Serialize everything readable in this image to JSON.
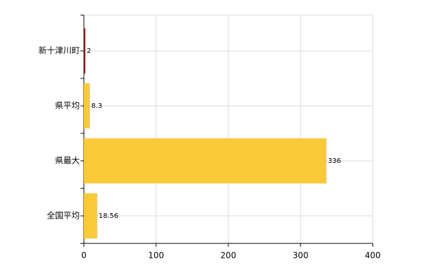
{
  "chart_data": {
    "type": "hbar",
    "categories": [
      "新十津川町",
      "県平均",
      "県最大",
      "全国平均"
    ],
    "values": [
      2,
      8.3,
      336,
      18.56
    ],
    "colors": [
      "#8b1a1a",
      "#f9c93a",
      "#f9c93a",
      "#f9c93a"
    ],
    "xlim": [
      0,
      400
    ],
    "xticks": [
      0,
      100,
      200,
      300,
      400
    ],
    "grid": true
  }
}
